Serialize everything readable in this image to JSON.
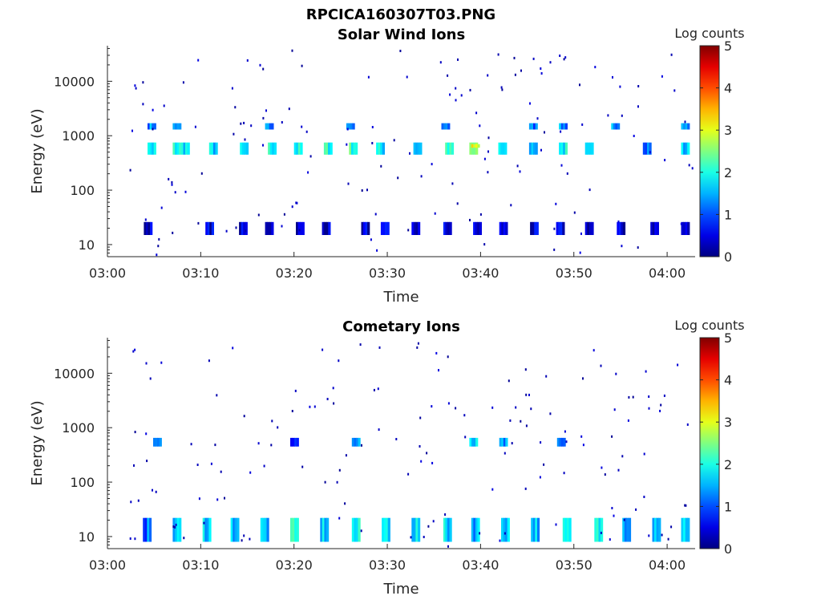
{
  "figure_title": "RPCICA160307T03.PNG",
  "chart_data": [
    {
      "type": "heatmap",
      "title": "Solar Wind Ions",
      "xlabel": "Time",
      "ylabel": "Energy (eV)",
      "xlim": [
        "03:00",
        "04:03"
      ],
      "ylim": [
        6,
        45000
      ],
      "yscale": "log",
      "xticks": [
        "03:00",
        "03:10",
        "03:20",
        "03:30",
        "03:40",
        "03:50",
        "04:00"
      ],
      "yticks": [
        10,
        100,
        1000,
        10000
      ],
      "yticklabels": [
        "10",
        "100",
        "1000",
        "10000"
      ],
      "colorbar": {
        "label": "Log counts",
        "range": [
          0,
          5
        ],
        "ticks": [
          "0",
          "1",
          "2",
          "3",
          "4",
          "5"
        ],
        "colormap": "jet"
      },
      "bursts": [
        {
          "t": 4.7,
          "e": [
            1300,
            1700
          ],
          "v": 1.4
        },
        {
          "t": 4.7,
          "e": [
            450,
            750
          ],
          "v": 1.8
        },
        {
          "t": 7.4,
          "e": [
            1300,
            1700
          ],
          "v": 1.3
        },
        {
          "t": 7.4,
          "e": [
            450,
            750
          ],
          "v": 2.0
        },
        {
          "t": 8.3,
          "e": [
            450,
            750
          ],
          "v": 1.9
        },
        {
          "t": 11.3,
          "e": [
            450,
            750
          ],
          "v": 1.7
        },
        {
          "t": 14.6,
          "e": [
            450,
            750
          ],
          "v": 1.6
        },
        {
          "t": 17.3,
          "e": [
            1300,
            1700
          ],
          "v": 1.2
        },
        {
          "t": 17.6,
          "e": [
            450,
            750
          ],
          "v": 2.0
        },
        {
          "t": 20.4,
          "e": [
            450,
            750
          ],
          "v": 1.9
        },
        {
          "t": 23.6,
          "e": [
            450,
            750
          ],
          "v": 2.1
        },
        {
          "t": 26.0,
          "e": [
            1300,
            1700
          ],
          "v": 1.4
        },
        {
          "t": 26.3,
          "e": [
            450,
            750
          ],
          "v": 2.2
        },
        {
          "t": 29.2,
          "e": [
            450,
            750
          ],
          "v": 1.8
        },
        {
          "t": 33.2,
          "e": [
            450,
            750
          ],
          "v": 1.7
        },
        {
          "t": 36.2,
          "e": [
            1300,
            1700
          ],
          "v": 1.3
        },
        {
          "t": 36.6,
          "e": [
            450,
            750
          ],
          "v": 2.0
        },
        {
          "t": 39.2,
          "e": [
            450,
            750
          ],
          "v": 2.5
        },
        {
          "t": 39.4,
          "e": [
            600,
            700
          ],
          "v": 3.0
        },
        {
          "t": 42.3,
          "e": [
            450,
            750
          ],
          "v": 1.9
        },
        {
          "t": 45.6,
          "e": [
            1300,
            1700
          ],
          "v": 1.2
        },
        {
          "t": 45.6,
          "e": [
            450,
            750
          ],
          "v": 1.8
        },
        {
          "t": 48.8,
          "e": [
            1300,
            1700
          ],
          "v": 1.3
        },
        {
          "t": 48.8,
          "e": [
            450,
            750
          ],
          "v": 1.9
        },
        {
          "t": 51.6,
          "e": [
            450,
            750
          ],
          "v": 1.4
        },
        {
          "t": 54.4,
          "e": [
            1300,
            1700
          ],
          "v": 1.5
        },
        {
          "t": 57.8,
          "e": [
            450,
            750
          ],
          "v": 1.4
        },
        {
          "t": 61.9,
          "e": [
            1300,
            1700
          ],
          "v": 1.4
        },
        {
          "t": 61.9,
          "e": [
            450,
            750
          ],
          "v": 1.6
        },
        {
          "t": 4.3,
          "e": [
            15,
            26
          ],
          "v": 0.4
        },
        {
          "t": 10.9,
          "e": [
            15,
            26
          ],
          "v": 0.5
        },
        {
          "t": 14.5,
          "e": [
            15,
            26
          ],
          "v": 0.4
        },
        {
          "t": 17.3,
          "e": [
            15,
            26
          ],
          "v": 0.5
        },
        {
          "t": 20.6,
          "e": [
            15,
            26
          ],
          "v": 0.4
        },
        {
          "t": 23.4,
          "e": [
            15,
            26
          ],
          "v": 0.4
        },
        {
          "t": 27.6,
          "e": [
            15,
            26
          ],
          "v": 0.5
        },
        {
          "t": 29.7,
          "e": [
            15,
            26
          ],
          "v": 0.4
        },
        {
          "t": 33.0,
          "e": [
            15,
            26
          ],
          "v": 0.4
        },
        {
          "t": 36.4,
          "e": [
            15,
            26
          ],
          "v": 0.5
        },
        {
          "t": 39.6,
          "e": [
            15,
            26
          ],
          "v": 0.4
        },
        {
          "t": 42.4,
          "e": [
            15,
            26
          ],
          "v": 0.5
        },
        {
          "t": 45.7,
          "e": [
            15,
            26
          ],
          "v": 0.4
        },
        {
          "t": 48.5,
          "e": [
            15,
            26
          ],
          "v": 0.5
        },
        {
          "t": 51.6,
          "e": [
            15,
            26
          ],
          "v": 0.4
        },
        {
          "t": 55.0,
          "e": [
            15,
            26
          ],
          "v": 0.4
        },
        {
          "t": 58.6,
          "e": [
            15,
            26
          ],
          "v": 0.5
        },
        {
          "t": 61.9,
          "e": [
            15,
            26
          ],
          "v": 0.4
        }
      ]
    },
    {
      "type": "heatmap",
      "title": "Cometary Ions",
      "xlabel": "Time",
      "ylabel": "Energy (eV)",
      "xlim": [
        "03:00",
        "04:03"
      ],
      "ylim": [
        6,
        45000
      ],
      "yscale": "log",
      "xticks": [
        "03:00",
        "03:10",
        "03:20",
        "03:30",
        "03:40",
        "03:50",
        "04:00"
      ],
      "yticks": [
        10,
        100,
        1000,
        10000
      ],
      "yticklabels": [
        "10",
        "100",
        "1000",
        "10000"
      ],
      "colorbar": {
        "label": "Log counts",
        "range": [
          0,
          5
        ],
        "ticks": [
          "0",
          "1",
          "2",
          "3",
          "4",
          "5"
        ],
        "colormap": "jet"
      },
      "bursts": [
        {
          "t": 4.2,
          "e": [
            8,
            22
          ],
          "v": 1.2
        },
        {
          "t": 7.4,
          "e": [
            8,
            22
          ],
          "v": 1.6
        },
        {
          "t": 10.6,
          "e": [
            8,
            22
          ],
          "v": 1.8
        },
        {
          "t": 13.6,
          "e": [
            8,
            22
          ],
          "v": 1.7
        },
        {
          "t": 16.8,
          "e": [
            8,
            22
          ],
          "v": 1.6
        },
        {
          "t": 20.0,
          "e": [
            8,
            22
          ],
          "v": 1.9
        },
        {
          "t": 23.2,
          "e": [
            8,
            22
          ],
          "v": 1.7
        },
        {
          "t": 26.6,
          "e": [
            8,
            22
          ],
          "v": 1.8
        },
        {
          "t": 29.8,
          "e": [
            8,
            22
          ],
          "v": 1.9
        },
        {
          "t": 33.0,
          "e": [
            8,
            22
          ],
          "v": 1.8
        },
        {
          "t": 36.4,
          "e": [
            8,
            22
          ],
          "v": 1.7
        },
        {
          "t": 39.4,
          "e": [
            8,
            22
          ],
          "v": 1.6
        },
        {
          "t": 42.6,
          "e": [
            8,
            22
          ],
          "v": 1.8
        },
        {
          "t": 45.8,
          "e": [
            8,
            22
          ],
          "v": 1.7
        },
        {
          "t": 49.2,
          "e": [
            8,
            22
          ],
          "v": 1.7
        },
        {
          "t": 52.6,
          "e": [
            8,
            22
          ],
          "v": 1.9
        },
        {
          "t": 55.6,
          "e": [
            8,
            22
          ],
          "v": 1.7
        },
        {
          "t": 58.8,
          "e": [
            8,
            22
          ],
          "v": 1.8
        },
        {
          "t": 61.9,
          "e": [
            8,
            22
          ],
          "v": 1.8
        },
        {
          "t": 5.3,
          "e": [
            450,
            650
          ],
          "v": 1.1
        },
        {
          "t": 20.0,
          "e": [
            450,
            650
          ],
          "v": 0.9
        },
        {
          "t": 26.6,
          "e": [
            450,
            650
          ],
          "v": 1.3
        },
        {
          "t": 39.2,
          "e": [
            450,
            650
          ],
          "v": 1.6
        },
        {
          "t": 42.4,
          "e": [
            450,
            650
          ],
          "v": 1.3
        },
        {
          "t": 48.6,
          "e": [
            450,
            650
          ],
          "v": 1.0
        }
      ]
    }
  ]
}
